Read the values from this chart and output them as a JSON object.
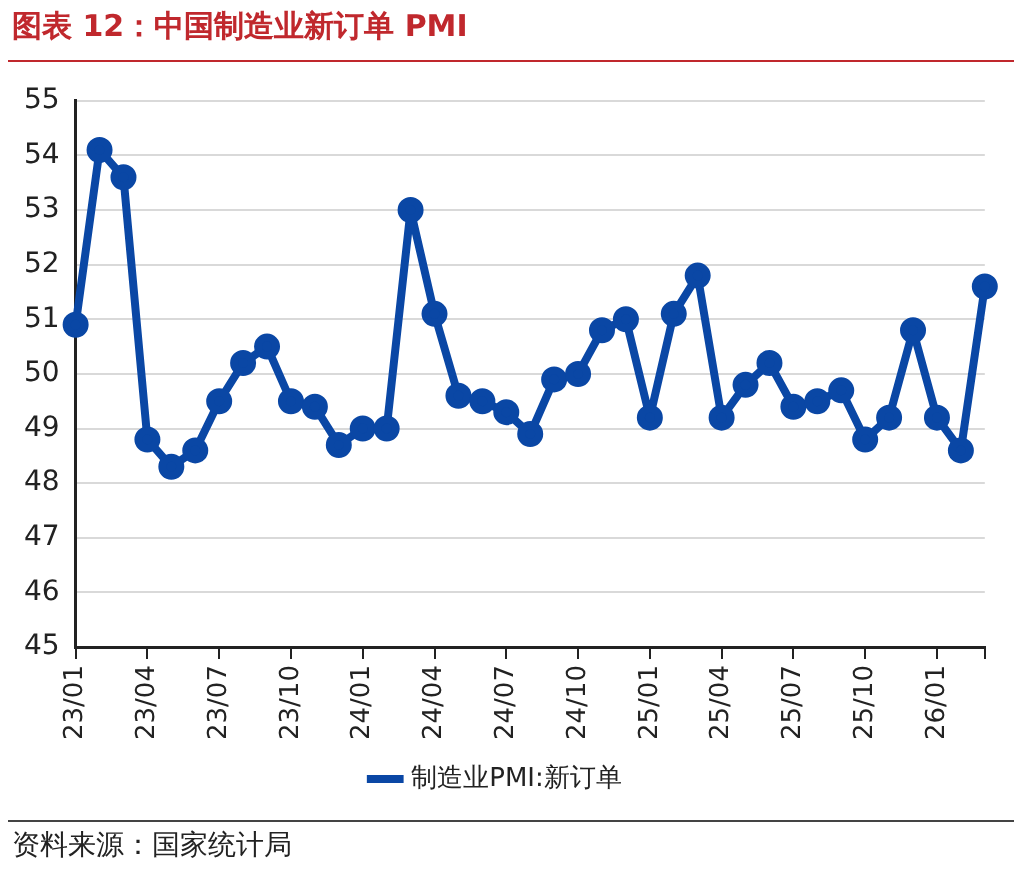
{
  "chart_data": {
    "type": "line",
    "title": "图表 12：中国制造业新订单 PMI",
    "categories": [
      "23/01",
      null,
      null,
      "23/04",
      null,
      null,
      "23/07",
      null,
      null,
      "23/10",
      null,
      null,
      "24/01",
      null,
      null,
      "24/04",
      null,
      null,
      "24/07",
      null,
      null,
      "24/10",
      null,
      null,
      "25/01",
      null,
      null,
      "25/04",
      null,
      null,
      "25/07",
      null,
      null,
      "25/10",
      null,
      null,
      "26/01",
      null,
      null
    ],
    "series": [
      {
        "name": "制造业PMI:新订单",
        "color": "#0a47a5",
        "values": [
          50.9,
          54.1,
          53.6,
          48.8,
          48.3,
          48.6,
          49.5,
          50.2,
          50.5,
          49.5,
          49.4,
          48.7,
          49.0,
          49.0,
          53.0,
          51.1,
          49.6,
          49.5,
          49.3,
          48.9,
          49.9,
          50.0,
          50.8,
          51.0,
          49.2,
          51.1,
          51.8,
          49.2,
          49.8,
          50.2,
          49.4,
          49.5,
          49.7,
          48.8,
          49.2,
          50.8,
          49.2,
          48.6,
          51.6
        ]
      }
    ],
    "ylim": [
      45,
      55
    ],
    "yticks": [
      45,
      46,
      47,
      48,
      49,
      50,
      51,
      52,
      53,
      54,
      55
    ],
    "grid": "y",
    "legend": "bottom",
    "marker": "circle",
    "line_style": "solid",
    "annotations": [
      "资料来源：国家统计局"
    ]
  }
}
